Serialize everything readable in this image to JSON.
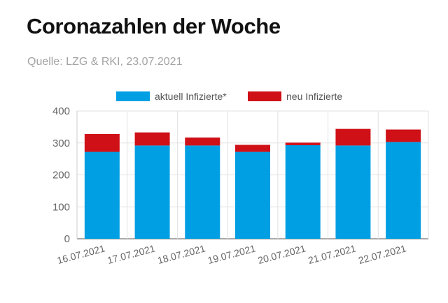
{
  "header": {
    "title": "Coronazahlen der Woche",
    "source": "Quelle: LZG & RKI, 23.07.2021"
  },
  "chart_data": {
    "type": "bar",
    "stacked": true,
    "categories": [
      "16.07.2021",
      "17.07.2021",
      "18.07.2021",
      "19.07.2021",
      "20.07.2021",
      "21.07.2021",
      "22.07.2021"
    ],
    "series": [
      {
        "name": "aktuell Infizierte*",
        "color": "#009fe3",
        "values": [
          272,
          292,
          292,
          272,
          293,
          292,
          303
        ]
      },
      {
        "name": "neu Infizierte",
        "color": "#cf1017",
        "values": [
          56,
          41,
          25,
          22,
          8,
          52,
          39
        ]
      }
    ],
    "ylim": [
      0,
      400
    ],
    "yticks": [
      0,
      100,
      200,
      300,
      400
    ],
    "grid": true,
    "legend": "top-center",
    "xlabel": "",
    "ylabel": ""
  }
}
